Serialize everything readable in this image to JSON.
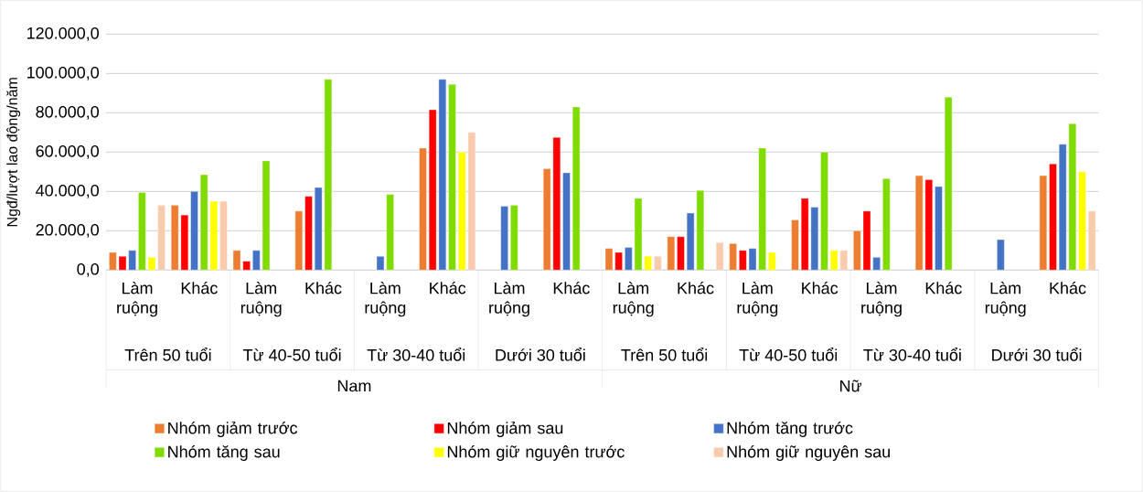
{
  "chart_data": {
    "type": "bar",
    "ylabel": "Ngđ/lượt lao động/năm",
    "categories": [
      "Làm ruộng",
      "Khác",
      "Làm ruộng",
      "Khác",
      "Làm ruộng",
      "Khác",
      "Làm ruộng",
      "Khác",
      "Làm ruộng",
      "Khác",
      "Làm ruộng",
      "Khác",
      "Làm ruộng",
      "Khác",
      "Làm ruộng",
      "Khác"
    ],
    "annotations": [
      "Trên 50 tuổi",
      "Từ 40-50 tuổi",
      "Từ 30-40 tuổi",
      "Dưới 30 tuổi",
      "Trên 50 tuổi",
      "Từ 40-50 tuổi",
      "Từ 30-40 tuổi",
      "Dưới 30 tuổi",
      "Nam",
      "Nữ"
    ],
    "series": [
      {
        "name": "Nhóm giảm trước",
        "color": "#ed7d31",
        "values": [
          9000,
          33000,
          10000,
          30000,
          null,
          62000,
          null,
          51500,
          11000,
          17000,
          13500,
          25500,
          20000,
          48000,
          null,
          48000
        ]
      },
      {
        "name": "Nhóm giảm sau",
        "color": "#ff0000",
        "values": [
          7000,
          28000,
          4500,
          37500,
          null,
          81500,
          null,
          67500,
          9000,
          17000,
          10000,
          36500,
          30000,
          46000,
          null,
          54000
        ]
      },
      {
        "name": "Nhóm tăng trước",
        "color": "#4472c4",
        "values": [
          10000,
          40000,
          10000,
          42000,
          7000,
          97000,
          32500,
          49500,
          11500,
          29000,
          11000,
          32000,
          6500,
          42500,
          15500,
          64000
        ]
      },
      {
        "name": "Nhóm tăng sau",
        "color": "#7fdb00",
        "values": [
          39500,
          48500,
          55500,
          97000,
          38500,
          94500,
          33000,
          83000,
          36500,
          40500,
          62000,
          60000,
          46500,
          88000,
          null,
          74500
        ]
      },
      {
        "name": "Nhóm giữ nguyên trước",
        "color": "#ffff00",
        "values": [
          6500,
          35000,
          null,
          null,
          null,
          60000,
          null,
          null,
          7000,
          null,
          9000,
          10000,
          null,
          null,
          null,
          50000
        ]
      },
      {
        "name": "Nhóm giữ nguyên sau",
        "color": "#f8cbad",
        "values": [
          33000,
          35000,
          null,
          null,
          null,
          70000,
          null,
          null,
          7000,
          14000,
          null,
          10000,
          null,
          null,
          null,
          30000
        ]
      }
    ],
    "ylim": [
      0,
      120000
    ],
    "yticks": [
      {
        "value": 0,
        "label": "0,0"
      },
      {
        "value": 20000,
        "label": "20.000,0"
      },
      {
        "value": 40000,
        "label": "40.000,0"
      },
      {
        "value": 60000,
        "label": "60.000,0"
      },
      {
        "value": 80000,
        "label": "80.000,0"
      },
      {
        "value": 100000,
        "label": "100.000,0"
      },
      {
        "value": 120000,
        "label": "120.000,0"
      }
    ],
    "grid": "y",
    "legend": "bottom"
  }
}
